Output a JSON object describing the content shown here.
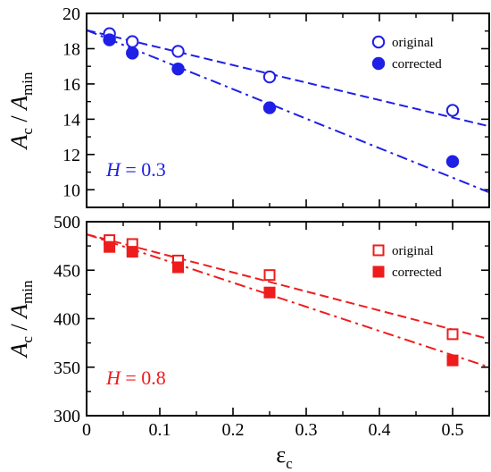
{
  "chart_data": [
    {
      "type": "scatter",
      "panel": "top",
      "color": "#1f1fe6",
      "marker": "circle",
      "ylabel_main": "A",
      "ylabel_sub1": "c",
      "ylabel_sep": " / ",
      "ylabel_main2": "A",
      "ylabel_sub2": "min",
      "label_var": "H",
      "label_rest": " = 0.3",
      "xlim": [
        0,
        0.55
      ],
      "ylim": [
        9,
        20
      ],
      "xticks": [
        0,
        0.1,
        0.2,
        0.3,
        0.4,
        0.5
      ],
      "xtick_labels": [
        "",
        "",
        "",
        "",
        "",
        ""
      ],
      "yticks": [
        10,
        12,
        14,
        16,
        18,
        20
      ],
      "ytick_labels": [
        "10",
        "12",
        "14",
        "16",
        "18",
        "20"
      ],
      "legend_position": "top-right",
      "series": [
        {
          "name": "original",
          "fill": "open",
          "x": [
            0.03125,
            0.0625,
            0.125,
            0.25,
            0.5
          ],
          "y": [
            18.85,
            18.4,
            17.85,
            16.4,
            14.5
          ],
          "fit": {
            "style": "dashed",
            "x": [
              0,
              0.55
            ],
            "y": [
              19.05,
              13.6
            ]
          }
        },
        {
          "name": "corrected",
          "fill": "filled",
          "x": [
            0.03125,
            0.0625,
            0.125,
            0.25,
            0.5
          ],
          "y": [
            18.5,
            17.75,
            16.85,
            14.65,
            11.6
          ],
          "fit": {
            "style": "dashdot",
            "x": [
              0,
              0.55
            ],
            "y": [
              19.05,
              9.85
            ]
          }
        }
      ]
    },
    {
      "type": "scatter",
      "panel": "bottom",
      "color": "#ee1c1c",
      "marker": "square",
      "ylabel_main": "A",
      "ylabel_sub1": "c",
      "ylabel_sep": " / ",
      "ylabel_main2": "A",
      "ylabel_sub2": "min",
      "xlabel": "ε",
      "xlabel_sub": "c",
      "label_var": "H",
      "label_rest": " = 0.8",
      "xlim": [
        0,
        0.55
      ],
      "ylim": [
        300,
        500
      ],
      "xticks": [
        0,
        0.1,
        0.2,
        0.3,
        0.4,
        0.5
      ],
      "xtick_labels": [
        "0",
        "0.1",
        "0.2",
        "0.3",
        "0.4",
        "0.5"
      ],
      "yticks": [
        300,
        350,
        400,
        450,
        500
      ],
      "ytick_labels": [
        "300",
        "350",
        "400",
        "450",
        "500"
      ],
      "legend_position": "top-right",
      "series": [
        {
          "name": "original",
          "fill": "open",
          "x": [
            0.03125,
            0.0625,
            0.125,
            0.25,
            0.5
          ],
          "y": [
            481,
            477,
            460,
            445,
            384
          ],
          "fit": {
            "style": "dashed",
            "x": [
              0,
              0.55
            ],
            "y": [
              487,
              379
            ]
          }
        },
        {
          "name": "corrected",
          "fill": "filled",
          "x": [
            0.03125,
            0.0625,
            0.125,
            0.25,
            0.5
          ],
          "y": [
            474,
            469,
            453,
            427,
            357
          ],
          "fit": {
            "style": "dashdot",
            "x": [
              0,
              0.55
            ],
            "y": [
              487,
              350
            ]
          }
        }
      ]
    }
  ]
}
